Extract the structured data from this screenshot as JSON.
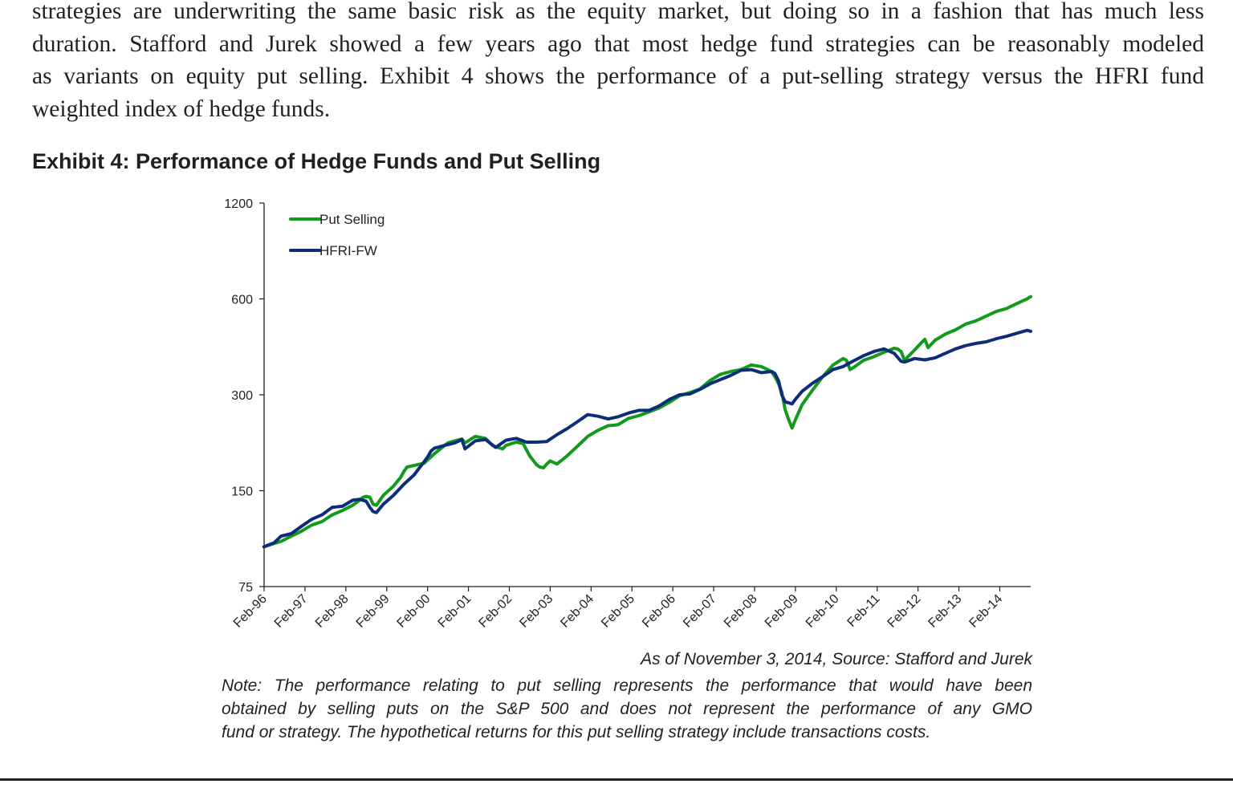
{
  "paragraph": {
    "lines": [
      "strategies are underwriting the same basic risk as the equity market, but doing so in a fashion that has much less",
      "duration. Stafford and Jurek showed a few years ago that most hedge fund strategies can be reasonably modeled",
      "as variants on equity put selling. Exhibit 4 shows the performance of a put-selling strategy versus the HFRI fund",
      "weighted index of hedge funds."
    ]
  },
  "exhibit_title": "Exhibit 4: Performance of Hedge Funds and Put Selling",
  "source": "As of November 3, 2014, Source: Stafford and Jurek",
  "note": {
    "lines": [
      "Note: The performance relating to put selling represents the performance that would have been",
      "obtained by selling puts on the S&P 500 and does not represent the performance of any GMO",
      "fund or strategy. The hypothetical returns for this put selling strategy include transactions costs."
    ]
  },
  "colors": {
    "put_selling": "#119a1c",
    "hfri": "#0d2d7a",
    "axis": "#231f20"
  },
  "chart_data": {
    "type": "line",
    "y_scale": "log2",
    "ylim": [
      75,
      1200
    ],
    "yticks": [
      75,
      150,
      300,
      600,
      1200
    ],
    "xlim": [
      1996.083,
      2014.84
    ],
    "xtick_labels": [
      "Feb-96",
      "Feb-97",
      "Feb-98",
      "Feb-99",
      "Feb-00",
      "Feb-01",
      "Feb-02",
      "Feb-03",
      "Feb-04",
      "Feb-05",
      "Feb-06",
      "Feb-07",
      "Feb-08",
      "Feb-09",
      "Feb-10",
      "Feb-11",
      "Feb-12",
      "Feb-13",
      "Feb-14"
    ],
    "xtick_years": [
      1996.083,
      1997.083,
      1998.083,
      1999.083,
      2000.083,
      2001.083,
      2002.083,
      2003.083,
      2004.083,
      2005.083,
      2006.083,
      2007.083,
      2008.083,
      2009.083,
      2010.083,
      2011.083,
      2012.083,
      2013.083,
      2014.083
    ],
    "legend_position": "top-left",
    "series": [
      {
        "name": "Put Selling",
        "color_key": "put_selling",
        "x": [
          1996.08,
          1996.5,
          1996.75,
          1997.0,
          1997.25,
          1997.5,
          1997.75,
          1998.0,
          1998.25,
          1998.42,
          1998.5,
          1998.58,
          1998.67,
          1998.75,
          1998.83,
          1999.0,
          1999.25,
          1999.42,
          1999.5,
          1999.58,
          1999.75,
          2000.0,
          2000.25,
          2000.5,
          2000.58,
          2000.75,
          2000.92,
          2001.0,
          2001.08,
          2001.17,
          2001.25,
          2001.5,
          2001.67,
          2001.75,
          2001.92,
          2002.0,
          2002.25,
          2002.42,
          2002.58,
          2002.75,
          2002.83,
          2002.92,
          2003.0,
          2003.08,
          2003.25,
          2003.5,
          2003.75,
          2004.0,
          2004.25,
          2004.5,
          2004.67,
          2004.75,
          2005.0,
          2005.25,
          2005.5,
          2005.75,
          2006.0,
          2006.25,
          2006.5,
          2006.75,
          2007.0,
          2007.25,
          2007.5,
          2007.75,
          2008.0,
          2008.25,
          2008.5,
          2008.58,
          2008.67,
          2008.75,
          2008.83,
          2008.92,
          2009.0,
          2009.08,
          2009.25,
          2009.5,
          2009.75,
          2010.0,
          2010.25,
          2010.33,
          2010.42,
          2010.5,
          2010.75,
          2011.0,
          2011.25,
          2011.5,
          2011.58,
          2011.67,
          2011.75,
          2012.0,
          2012.17,
          2012.25,
          2012.33,
          2012.5,
          2012.75,
          2013.0,
          2013.25,
          2013.5,
          2013.75,
          2014.0,
          2014.25,
          2014.5,
          2014.75,
          2014.84
        ],
        "values": [
          100,
          104,
          108,
          112,
          117,
          120,
          126,
          130,
          135,
          140,
          143,
          144,
          143,
          136,
          135,
          145,
          155,
          165,
          172,
          178,
          180,
          183,
          196,
          208,
          212,
          215,
          218,
          212,
          215,
          219,
          222,
          219,
          208,
          206,
          203,
          208,
          213,
          211,
          193,
          181,
          178,
          177,
          182,
          186,
          182,
          193,
          207,
          222,
          232,
          240,
          241,
          242,
          253,
          258,
          265,
          273,
          284,
          298,
          305,
          313,
          333,
          348,
          355,
          360,
          372,
          368,
          355,
          342,
          325,
          306,
          270,
          250,
          236,
          250,
          280,
          310,
          342,
          372,
          390,
          385,
          360,
          365,
          385,
          395,
          408,
          420,
          418,
          410,
          385,
          415,
          438,
          448,
          422,
          445,
          465,
          480,
          500,
          512,
          530,
          548,
          560,
          580,
          600,
          610
        ]
      },
      {
        "name": "HFRI-FW",
        "color_key": "hfri",
        "x": [
          1996.08,
          1996.33,
          1996.5,
          1996.75,
          1997.0,
          1997.25,
          1997.5,
          1997.75,
          1998.0,
          1998.25,
          1998.42,
          1998.5,
          1998.58,
          1998.67,
          1998.75,
          1998.83,
          1999.0,
          1999.25,
          1999.5,
          1999.75,
          2000.0,
          2000.08,
          2000.17,
          2000.25,
          2000.5,
          2000.75,
          2000.92,
          2001.0,
          2001.25,
          2001.5,
          2001.75,
          2002.0,
          2002.25,
          2002.5,
          2002.75,
          2003.0,
          2003.25,
          2003.5,
          2003.75,
          2004.0,
          2004.25,
          2004.5,
          2004.75,
          2005.0,
          2005.25,
          2005.5,
          2005.75,
          2006.0,
          2006.25,
          2006.5,
          2006.75,
          2007.0,
          2007.25,
          2007.5,
          2007.75,
          2008.0,
          2008.25,
          2008.5,
          2008.58,
          2008.67,
          2008.75,
          2008.83,
          2008.92,
          2009.0,
          2009.08,
          2009.25,
          2009.5,
          2009.75,
          2010.0,
          2010.25,
          2010.5,
          2010.75,
          2011.0,
          2011.25,
          2011.5,
          2011.67,
          2011.75,
          2012.0,
          2012.25,
          2012.5,
          2012.75,
          2013.0,
          2013.25,
          2013.5,
          2013.75,
          2014.0,
          2014.25,
          2014.5,
          2014.75,
          2014.84
        ],
        "values": [
          100,
          103,
          108,
          110,
          116,
          122,
          126,
          133,
          134,
          140,
          141,
          140,
          139,
          133,
          129,
          128,
          136,
          145,
          157,
          168,
          185,
          191,
          200,
          204,
          208,
          212,
          217,
          203,
          215,
          217,
          205,
          216,
          219,
          213,
          213,
          214,
          225,
          235,
          247,
          260,
          257,
          252,
          256,
          263,
          268,
          268,
          277,
          290,
          300,
          302,
          312,
          325,
          335,
          345,
          358,
          360,
          352,
          355,
          350,
          332,
          300,
          285,
          283,
          281,
          290,
          308,
          326,
          342,
          360,
          368,
          383,
          398,
          410,
          418,
          405,
          382,
          380,
          390,
          386,
          392,
          405,
          418,
          428,
          435,
          440,
          450,
          458,
          468,
          478,
          475
        ]
      }
    ]
  }
}
